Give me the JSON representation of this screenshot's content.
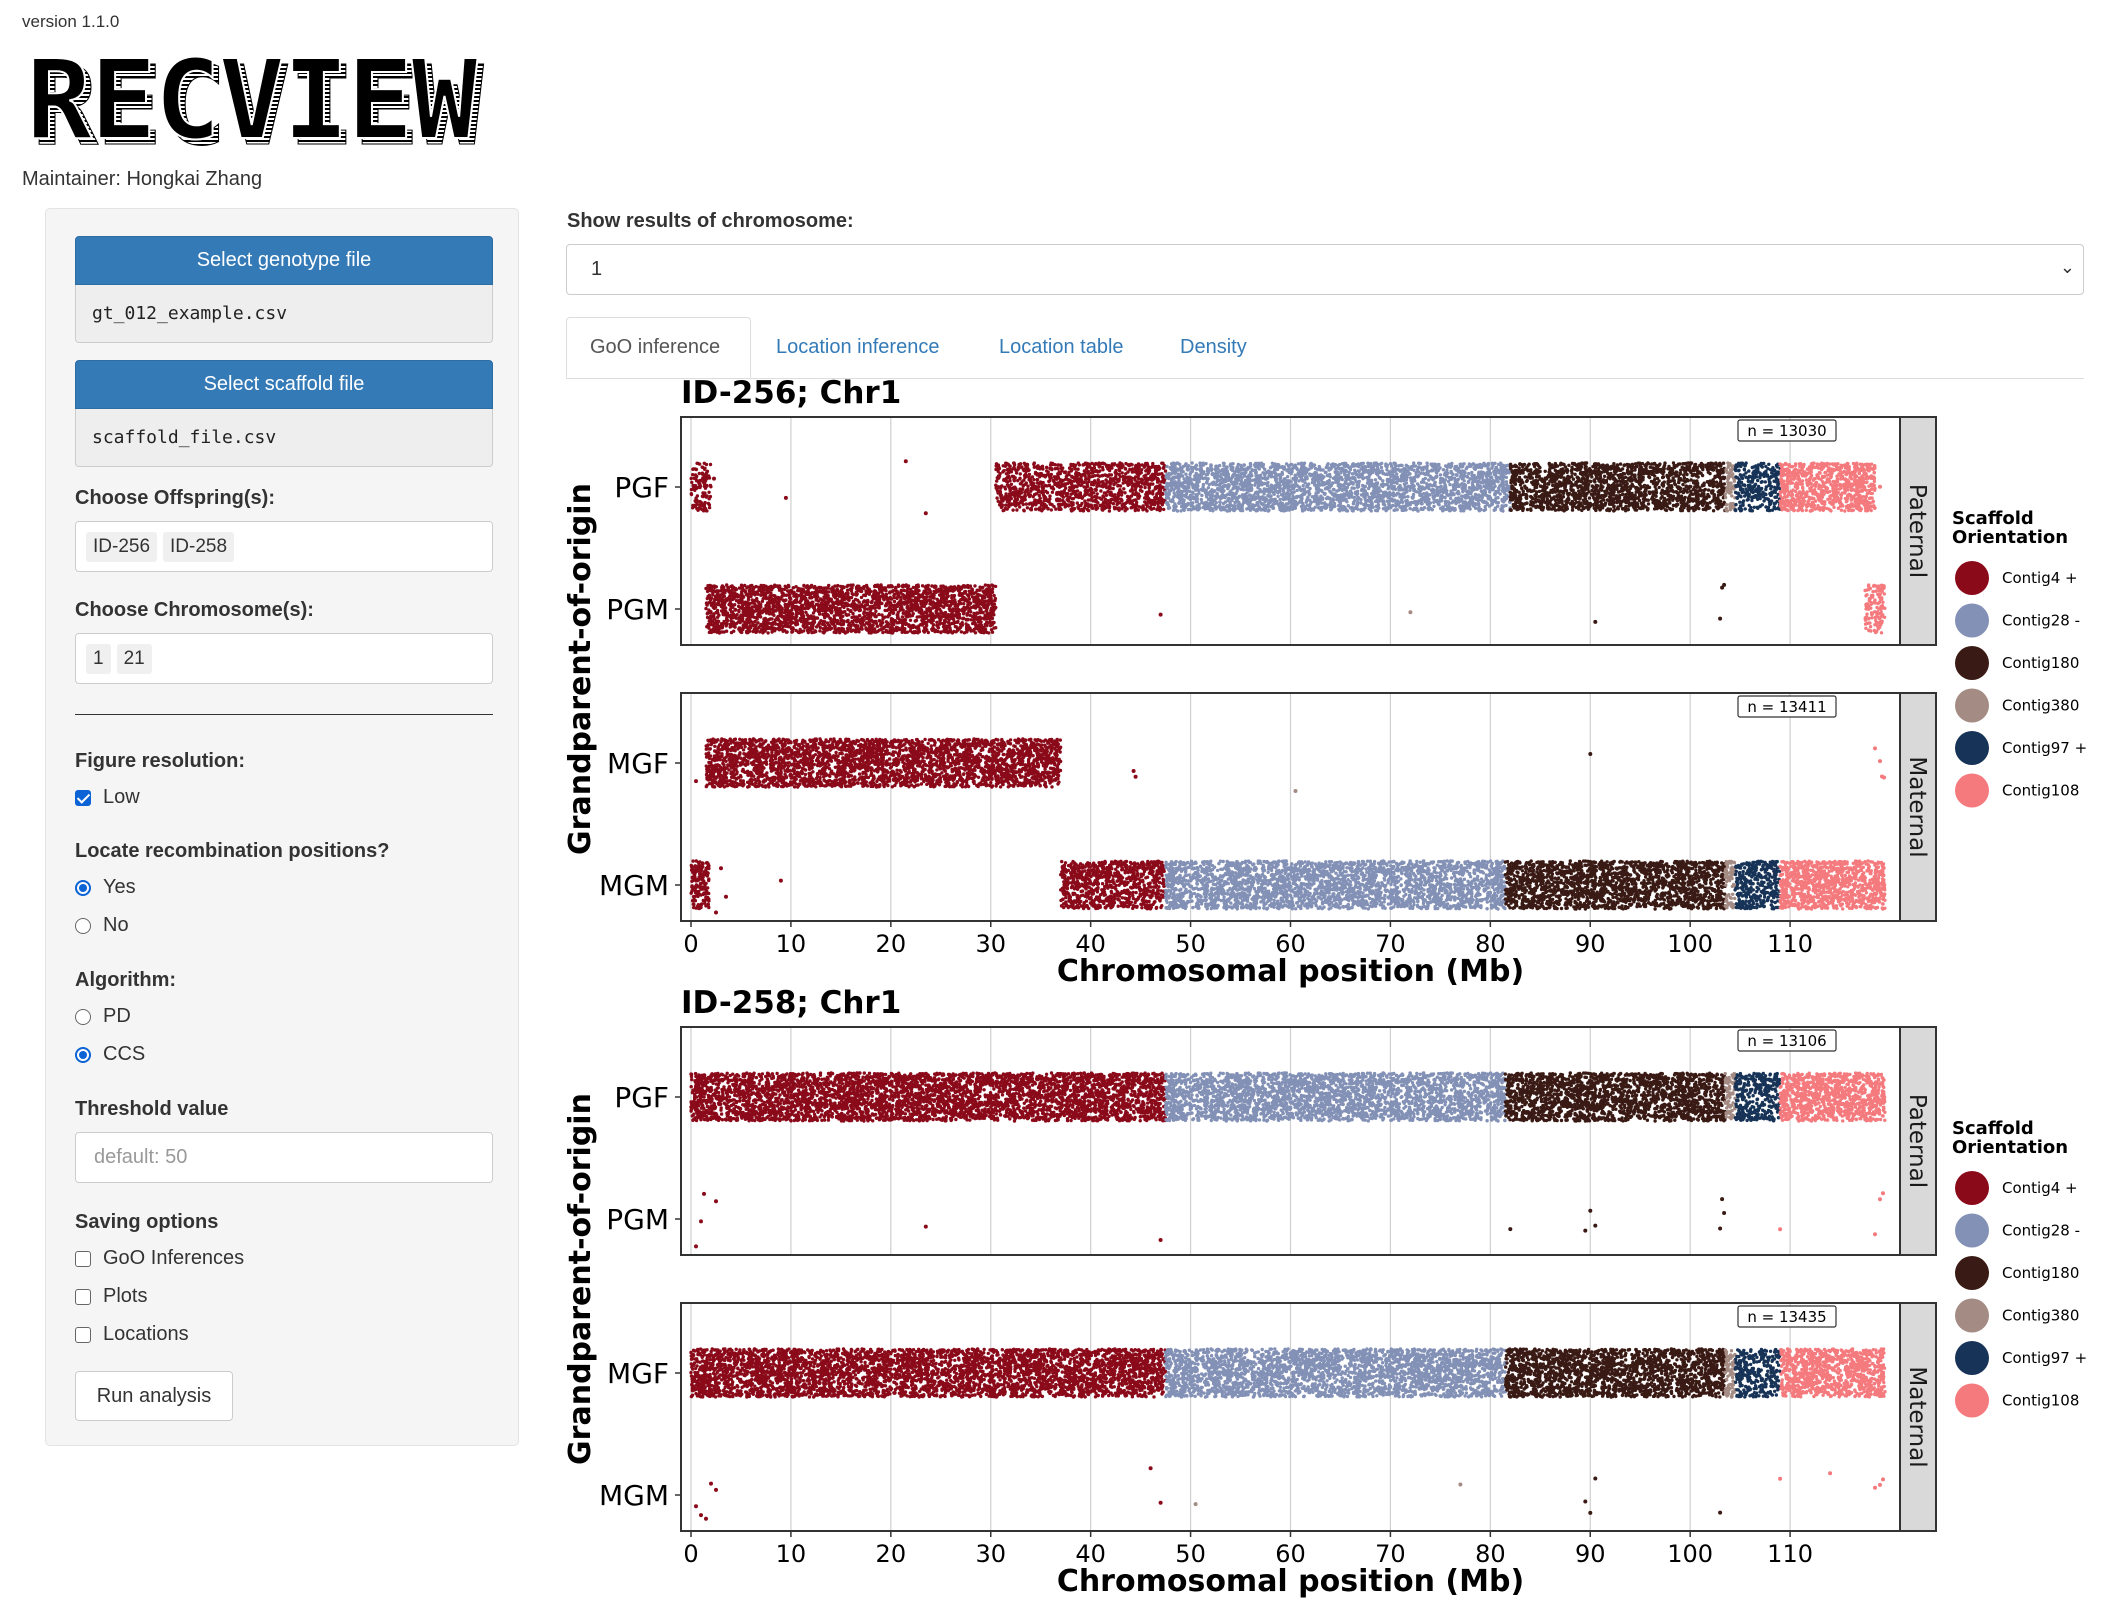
{
  "app": {
    "version": "version 1.1.0",
    "logo_text": "RECVIEW",
    "maintainer": "Maintainer: Hongkai Zhang"
  },
  "sidebar": {
    "genotype_button": "Select genotype file",
    "genotype_file": "gt_012_example.csv",
    "scaffold_button": "Select scaffold file",
    "scaffold_file": "scaffold_file.csv",
    "offspring_label": "Choose Offspring(s):",
    "offspring_tags": [
      "ID-256",
      "ID-258"
    ],
    "chromosome_label": "Choose Chromosome(s):",
    "chromosome_tags": [
      "1",
      "21"
    ],
    "resolution_label": "Figure resolution:",
    "resolution_option": "Low",
    "recomb_label": "Locate recombination positions?",
    "recomb_yes": "Yes",
    "recomb_no": "No",
    "algorithm_label": "Algorithm:",
    "algorithm_pd": "PD",
    "algorithm_ccs": "CCS",
    "threshold_label": "Threshold value",
    "threshold_placeholder": "default: 50",
    "saving_label": "Saving options",
    "save_goo": "GoO Inferences",
    "save_plots": "Plots",
    "save_locations": "Locations",
    "run_button": "Run analysis"
  },
  "main": {
    "show_label": "Show results of chromosome:",
    "chromosome_selected": "1",
    "tabs": [
      "GoO inference",
      "Location inference",
      "Location table",
      "Density"
    ]
  },
  "colors": {
    "Contig4 +": "#8b0a1a",
    "Contig28 -": "#8391b6",
    "Contig180": "#3a1a14",
    "Contig380": "#a48b84",
    "Contig97 +": "#173357",
    "Contig108": "#f47a7e"
  },
  "chart_data": [
    {
      "type": "scatter",
      "title": "ID-256; Chr1",
      "xlabel": "Chromosomal position (Mb)",
      "ylabel": "Grandparent-of-origin",
      "xticks": [
        0,
        10,
        20,
        30,
        40,
        50,
        60,
        70,
        80,
        90,
        100,
        110
      ],
      "xlim": [
        -1,
        121
      ],
      "legend_title": "Scaffold Orientation",
      "legend": [
        "Contig4 +",
        "Contig28 -",
        "Contig180",
        "Contig380",
        "Contig97 +",
        "Contig108"
      ],
      "facets": [
        {
          "strip": "Paternal",
          "n_label": "n = 13030",
          "rows": [
            {
              "label": "PGF",
              "segments": [
                {
                  "contig": "Contig4 +",
                  "x": [
                    0,
                    2
                  ],
                  "density": 0.7
                },
                {
                  "contig": "Contig4 +",
                  "x": [
                    30.5,
                    47.5
                  ],
                  "density": 0.8
                },
                {
                  "contig": "Contig28 -",
                  "x": [
                    47.5,
                    82
                  ],
                  "density": 0.9
                },
                {
                  "contig": "Contig180",
                  "x": [
                    82,
                    103.5
                  ],
                  "density": 0.9
                },
                {
                  "contig": "Contig380",
                  "x": [
                    103.5,
                    104.5
                  ],
                  "density": 0.8
                },
                {
                  "contig": "Contig97 +",
                  "x": [
                    104.5,
                    109
                  ],
                  "density": 0.7
                },
                {
                  "contig": "Contig108",
                  "x": [
                    109,
                    118.5
                  ],
                  "density": 1.0
                }
              ],
              "sparse": [
                {
                  "contig": "Contig4 +",
                  "x": [
                    2.3,
                    9.5,
                    21.5,
                    23.5
                  ]
                },
                {
                  "contig": "Contig108",
                  "x": [
                    119
                  ]
                }
              ]
            },
            {
              "label": "PGM",
              "segments": [
                {
                  "contig": "Contig4 +",
                  "x": [
                    1.5,
                    30.5
                  ],
                  "density": 1.0
                },
                {
                  "contig": "Contig108",
                  "x": [
                    117.5,
                    119.5
                  ],
                  "density": 0.7
                }
              ],
              "sparse": [
                {
                  "contig": "Contig4 +",
                  "x": [
                    47
                  ]
                },
                {
                  "contig": "Contig380",
                  "x": [
                    72
                  ]
                },
                {
                  "contig": "Contig180",
                  "x": [
                    90.5,
                    103,
                    103.2,
                    103.4
                  ]
                }
              ]
            }
          ]
        },
        {
          "strip": "Maternal",
          "n_label": "n = 13411",
          "rows": [
            {
              "label": "MGF",
              "segments": [
                {
                  "contig": "Contig4 +",
                  "x": [
                    1.5,
                    37
                  ],
                  "density": 1.0
                }
              ],
              "sparse": [
                {
                  "contig": "Contig4 +",
                  "x": [
                    0.5,
                    44.5,
                    44.3
                  ]
                },
                {
                  "contig": "Contig380",
                  "x": [
                    60.5
                  ]
                },
                {
                  "contig": "Contig180",
                  "x": [
                    90
                  ]
                },
                {
                  "contig": "Contig108",
                  "x": [
                    118.5,
                    119,
                    119.2,
                    119.4
                  ]
                }
              ]
            },
            {
              "label": "MGM",
              "segments": [
                {
                  "contig": "Contig4 +",
                  "x": [
                    0,
                    1.8
                  ],
                  "density": 1.0
                },
                {
                  "contig": "Contig4 +",
                  "x": [
                    37,
                    47.5
                  ],
                  "density": 0.9
                },
                {
                  "contig": "Contig28 -",
                  "x": [
                    47.5,
                    81.5
                  ],
                  "density": 0.9
                },
                {
                  "contig": "Contig180",
                  "x": [
                    81.5,
                    103.5
                  ],
                  "density": 0.95
                },
                {
                  "contig": "Contig380",
                  "x": [
                    103.5,
                    104.5
                  ],
                  "density": 0.8
                },
                {
                  "contig": "Contig97 +",
                  "x": [
                    104.5,
                    109
                  ],
                  "density": 0.8
                },
                {
                  "contig": "Contig108",
                  "x": [
                    109,
                    119.5
                  ],
                  "density": 1.0
                }
              ],
              "sparse": [
                {
                  "contig": "Contig4 +",
                  "x": [
                    2.5,
                    3,
                    3.5,
                    9
                  ]
                }
              ]
            }
          ]
        }
      ]
    },
    {
      "type": "scatter",
      "title": "ID-258; Chr1",
      "xlabel": "Chromosomal position (Mb)",
      "ylabel": "Grandparent-of-origin",
      "xticks": [
        0,
        10,
        20,
        30,
        40,
        50,
        60,
        70,
        80,
        90,
        100,
        110
      ],
      "xlim": [
        -1,
        121
      ],
      "legend_title": "Scaffold Orientation",
      "legend": [
        "Contig4 +",
        "Contig28 -",
        "Contig180",
        "Contig380",
        "Contig97 +",
        "Contig108"
      ],
      "facets": [
        {
          "strip": "Paternal",
          "n_label": "n = 13106",
          "rows": [
            {
              "label": "PGF",
              "segments": [
                {
                  "contig": "Contig4 +",
                  "x": [
                    0,
                    47.5
                  ],
                  "density": 1.0
                },
                {
                  "contig": "Contig28 -",
                  "x": [
                    47.5,
                    81.5
                  ],
                  "density": 0.9
                },
                {
                  "contig": "Contig180",
                  "x": [
                    81.5,
                    103.5
                  ],
                  "density": 0.95
                },
                {
                  "contig": "Contig380",
                  "x": [
                    103.5,
                    104.5
                  ],
                  "density": 0.8
                },
                {
                  "contig": "Contig97 +",
                  "x": [
                    104.5,
                    109
                  ],
                  "density": 0.8
                },
                {
                  "contig": "Contig108",
                  "x": [
                    109,
                    119.5
                  ],
                  "density": 1.0
                }
              ],
              "sparse": []
            },
            {
              "label": "PGM",
              "segments": [],
              "sparse": [
                {
                  "contig": "Contig4 +",
                  "x": [
                    0.5,
                    1,
                    1.3,
                    2.5,
                    23.5,
                    47
                  ]
                },
                {
                  "contig": "Contig180",
                  "x": [
                    82,
                    89.5,
                    90,
                    90.5,
                    103,
                    103.2,
                    103.4
                  ]
                },
                {
                  "contig": "Contig108",
                  "x": [
                    109,
                    118.5,
                    119,
                    119.3
                  ]
                }
              ]
            }
          ]
        },
        {
          "strip": "Maternal",
          "n_label": "n = 13435",
          "rows": [
            {
              "label": "MGF",
              "segments": [
                {
                  "contig": "Contig4 +",
                  "x": [
                    0,
                    47.5
                  ],
                  "density": 1.0
                },
                {
                  "contig": "Contig28 -",
                  "x": [
                    47.5,
                    81.5
                  ],
                  "density": 0.9
                },
                {
                  "contig": "Contig180",
                  "x": [
                    81.5,
                    103.5
                  ],
                  "density": 0.95
                },
                {
                  "contig": "Contig380",
                  "x": [
                    103.5,
                    104.5
                  ],
                  "density": 0.8
                },
                {
                  "contig": "Contig97 +",
                  "x": [
                    104.5,
                    109
                  ],
                  "density": 0.7
                },
                {
                  "contig": "Contig108",
                  "x": [
                    109,
                    119.5
                  ],
                  "density": 1.0
                }
              ],
              "sparse": []
            },
            {
              "label": "MGM",
              "segments": [],
              "sparse": [
                {
                  "contig": "Contig4 +",
                  "x": [
                    0.5,
                    1,
                    1.5,
                    2,
                    2.5,
                    47,
                    46
                  ]
                },
                {
                  "contig": "Contig380",
                  "x": [
                    50.5,
                    77
                  ]
                },
                {
                  "contig": "Contig180",
                  "x": [
                    89.5,
                    90,
                    90.5,
                    103
                  ]
                },
                {
                  "contig": "Contig108",
                  "x": [
                    109,
                    114,
                    118.5,
                    119,
                    119.3
                  ]
                }
              ]
            }
          ]
        }
      ]
    }
  ]
}
